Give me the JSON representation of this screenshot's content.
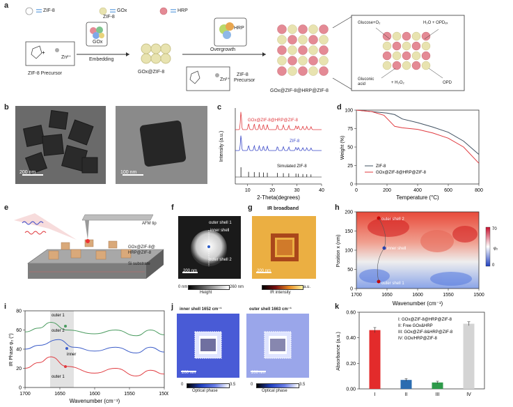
{
  "panel_labels": [
    "a",
    "b",
    "c",
    "d",
    "e",
    "f",
    "g",
    "h",
    "i",
    "j",
    "k"
  ],
  "panel_a": {
    "legend": [
      "ZIF-8",
      "GOx",
      "HRP"
    ],
    "zif8_precursor": "ZIF-8 Precursor",
    "goxs_label": "GOx",
    "embedding": "Embedding",
    "gox_zif8": "GOx@ZIF-8",
    "hrp": "HRP",
    "overgrowth": "Overgrowth",
    "zif8_precursor2_line1": "ZIF-8",
    "zif8_precursor2_line2": "Precursor",
    "zn": "Zn²⁺",
    "product": "GOx@ZIF-8@HRP@ZIF-8",
    "glucose": "Glucose+O₂",
    "h2o_opd": "H₂O + OPDₒₓ",
    "gluconic_line1": "Gluconic",
    "gluconic_line2": "acid",
    "h2o2": "+ H₂O₂",
    "opd": "OPD"
  },
  "panel_b": {
    "scale1": "200 nm",
    "scale2": "100 nm"
  },
  "panel_f": {
    "labels": [
      "outer shell 1",
      "inner shell",
      "outer shell 2"
    ],
    "scale": "200 nm",
    "cbar_min": "0 nm",
    "cbar_max": "260 nm",
    "cbar_title": "Height"
  },
  "panel_g": {
    "title": "IR broadband",
    "scale": "200 nm",
    "cbar_max": "a.u.",
    "cbar_title": "IR intensity"
  },
  "panel_e": {
    "afm_tip": "AFM tip",
    "sample_line1": "GOx@ZIF-8@",
    "sample_line2": "HRP@ZIF-8",
    "substrate": "Si substrate"
  },
  "panel_h": {
    "labels": [
      "outer shell 2",
      "inner shell",
      "outer shell 1"
    ],
    "cbar_max": "70",
    "cbar_min": "0",
    "cbar_unit": "φ₂"
  },
  "panel_j": {
    "title1": "inner shell 1652 cm⁻¹",
    "title2": "outer shell 1663 cm⁻¹",
    "scale": "200 nm",
    "cbar_min": "0",
    "cbar_max": "3.5",
    "cbar_title": "Optical phase"
  },
  "chart_data": [
    {
      "panel": "c",
      "type": "line",
      "xlabel": "2-Theta(degrees)",
      "ylabel": "Intensity (a.u.)",
      "xlim": [
        5,
        40
      ],
      "xticks": [
        "10",
        "20",
        "30",
        "40"
      ],
      "series": [
        {
          "name": "GOx@ZIF-8@HRP@ZIF-8",
          "color": "#e0393e",
          "peaks": [
            7.3,
            10.4,
            12.7,
            14.7,
            16.4,
            18.0,
            22.1,
            24.5,
            26.7,
            29.6,
            30.6,
            32.4,
            34.0,
            35.7
          ]
        },
        {
          "name": "ZIF-8",
          "color": "#3b49c8",
          "peaks": [
            7.3,
            10.4,
            12.7,
            14.7,
            16.4,
            18.0,
            22.1,
            24.5,
            26.7,
            29.6,
            30.6,
            32.4,
            34.0,
            35.7
          ]
        },
        {
          "name": "Simulated ZIF-8",
          "color": "#111111",
          "peaks": [
            7.3,
            10.4,
            12.7,
            14.7,
            16.4,
            18.0,
            22.1,
            24.5,
            26.7,
            29.6,
            30.6,
            32.4,
            34.0,
            35.7
          ]
        }
      ]
    },
    {
      "panel": "d",
      "type": "line",
      "xlabel": "Temperature (°C)",
      "ylabel": "Weight (%)",
      "xlim": [
        0,
        800
      ],
      "ylim": [
        0,
        100
      ],
      "xticks": [
        "0",
        "200",
        "400",
        "600",
        "800"
      ],
      "yticks": [
        "0",
        "25",
        "50",
        "75",
        "100"
      ],
      "series": [
        {
          "name": "ZIF-8",
          "color": "#3f5060",
          "x": [
            0,
            100,
            200,
            250,
            300,
            400,
            500,
            600,
            700,
            800
          ],
          "y": [
            100,
            98,
            96,
            94,
            88,
            83,
            77,
            70,
            58,
            40
          ]
        },
        {
          "name": "GOx@ZIF-8@HRP@ZIF-8",
          "color": "#e0393e",
          "x": [
            0,
            100,
            180,
            250,
            300,
            400,
            500,
            600,
            700,
            800
          ],
          "y": [
            100,
            98,
            93,
            78,
            76,
            74,
            69,
            62,
            50,
            28
          ]
        }
      ]
    },
    {
      "panel": "i",
      "type": "line",
      "xlabel": "Wavenumber (cm⁻¹)",
      "ylabel": "IR Phase φ₂ (°)",
      "xlim": [
        1700,
        1500
      ],
      "ylim": [
        0,
        80
      ],
      "xticks": [
        "1700",
        "1650",
        "1600",
        "1550",
        "1500"
      ],
      "yticks": [
        "0",
        "20",
        "40",
        "60",
        "80"
      ],
      "annotations": [
        "outer 1",
        "outer 2",
        "inner",
        "outer 1"
      ],
      "series": [
        {
          "name": "outer 2",
          "color": "#4a9b5f",
          "x": [
            1700,
            1680,
            1663,
            1640,
            1600,
            1570,
            1540,
            1520,
            1500
          ],
          "y": [
            58,
            62,
            68,
            60,
            56,
            60,
            54,
            60,
            55
          ]
        },
        {
          "name": "inner",
          "color": "#3b5cc8",
          "x": [
            1700,
            1680,
            1652,
            1630,
            1600,
            1570,
            1540,
            1520,
            1500
          ],
          "y": [
            40,
            44,
            50,
            42,
            38,
            42,
            36,
            42,
            37
          ]
        },
        {
          "name": "outer 1",
          "color": "#e0393e",
          "x": [
            1700,
            1680,
            1663,
            1640,
            1600,
            1570,
            1540,
            1520,
            1500
          ],
          "y": [
            20,
            26,
            32,
            22,
            15,
            20,
            12,
            18,
            14
          ]
        }
      ]
    },
    {
      "panel": "k",
      "type": "bar",
      "ylabel": "Absorbance (a.u.)",
      "ylim": [
        0,
        0.6
      ],
      "yticks": [
        "0.00",
        "0.20",
        "0.40",
        "0.60"
      ],
      "categories": [
        "I",
        "II",
        "III",
        "IV"
      ],
      "values": [
        0.46,
        0.07,
        0.05,
        0.51
      ],
      "errors": [
        0.02,
        0.01,
        0.01,
        0.015
      ],
      "colors": [
        "#e32b2b",
        "#2b6cb0",
        "#2e9a4a",
        "#d4d4d4"
      ],
      "legend": [
        "I: GOx@ZIF-8@HRP@ZIF-8",
        "II: Free GOx&HRP",
        "III: GOx@ZIF-8&HRP@ZIF-8",
        "IV: GOx/HRP@ZIF-8"
      ]
    },
    {
      "panel": "h",
      "type": "heatmap",
      "xlabel": "Wavenumber (cm⁻¹)",
      "ylabel": "Position x (nm)",
      "xlim": [
        1700,
        1500
      ],
      "ylim": [
        0,
        200
      ],
      "xticks": [
        "1700",
        "1650",
        "1600",
        "1550",
        "1500"
      ],
      "yticks": [
        "0",
        "50",
        "100",
        "150",
        "200"
      ]
    }
  ]
}
